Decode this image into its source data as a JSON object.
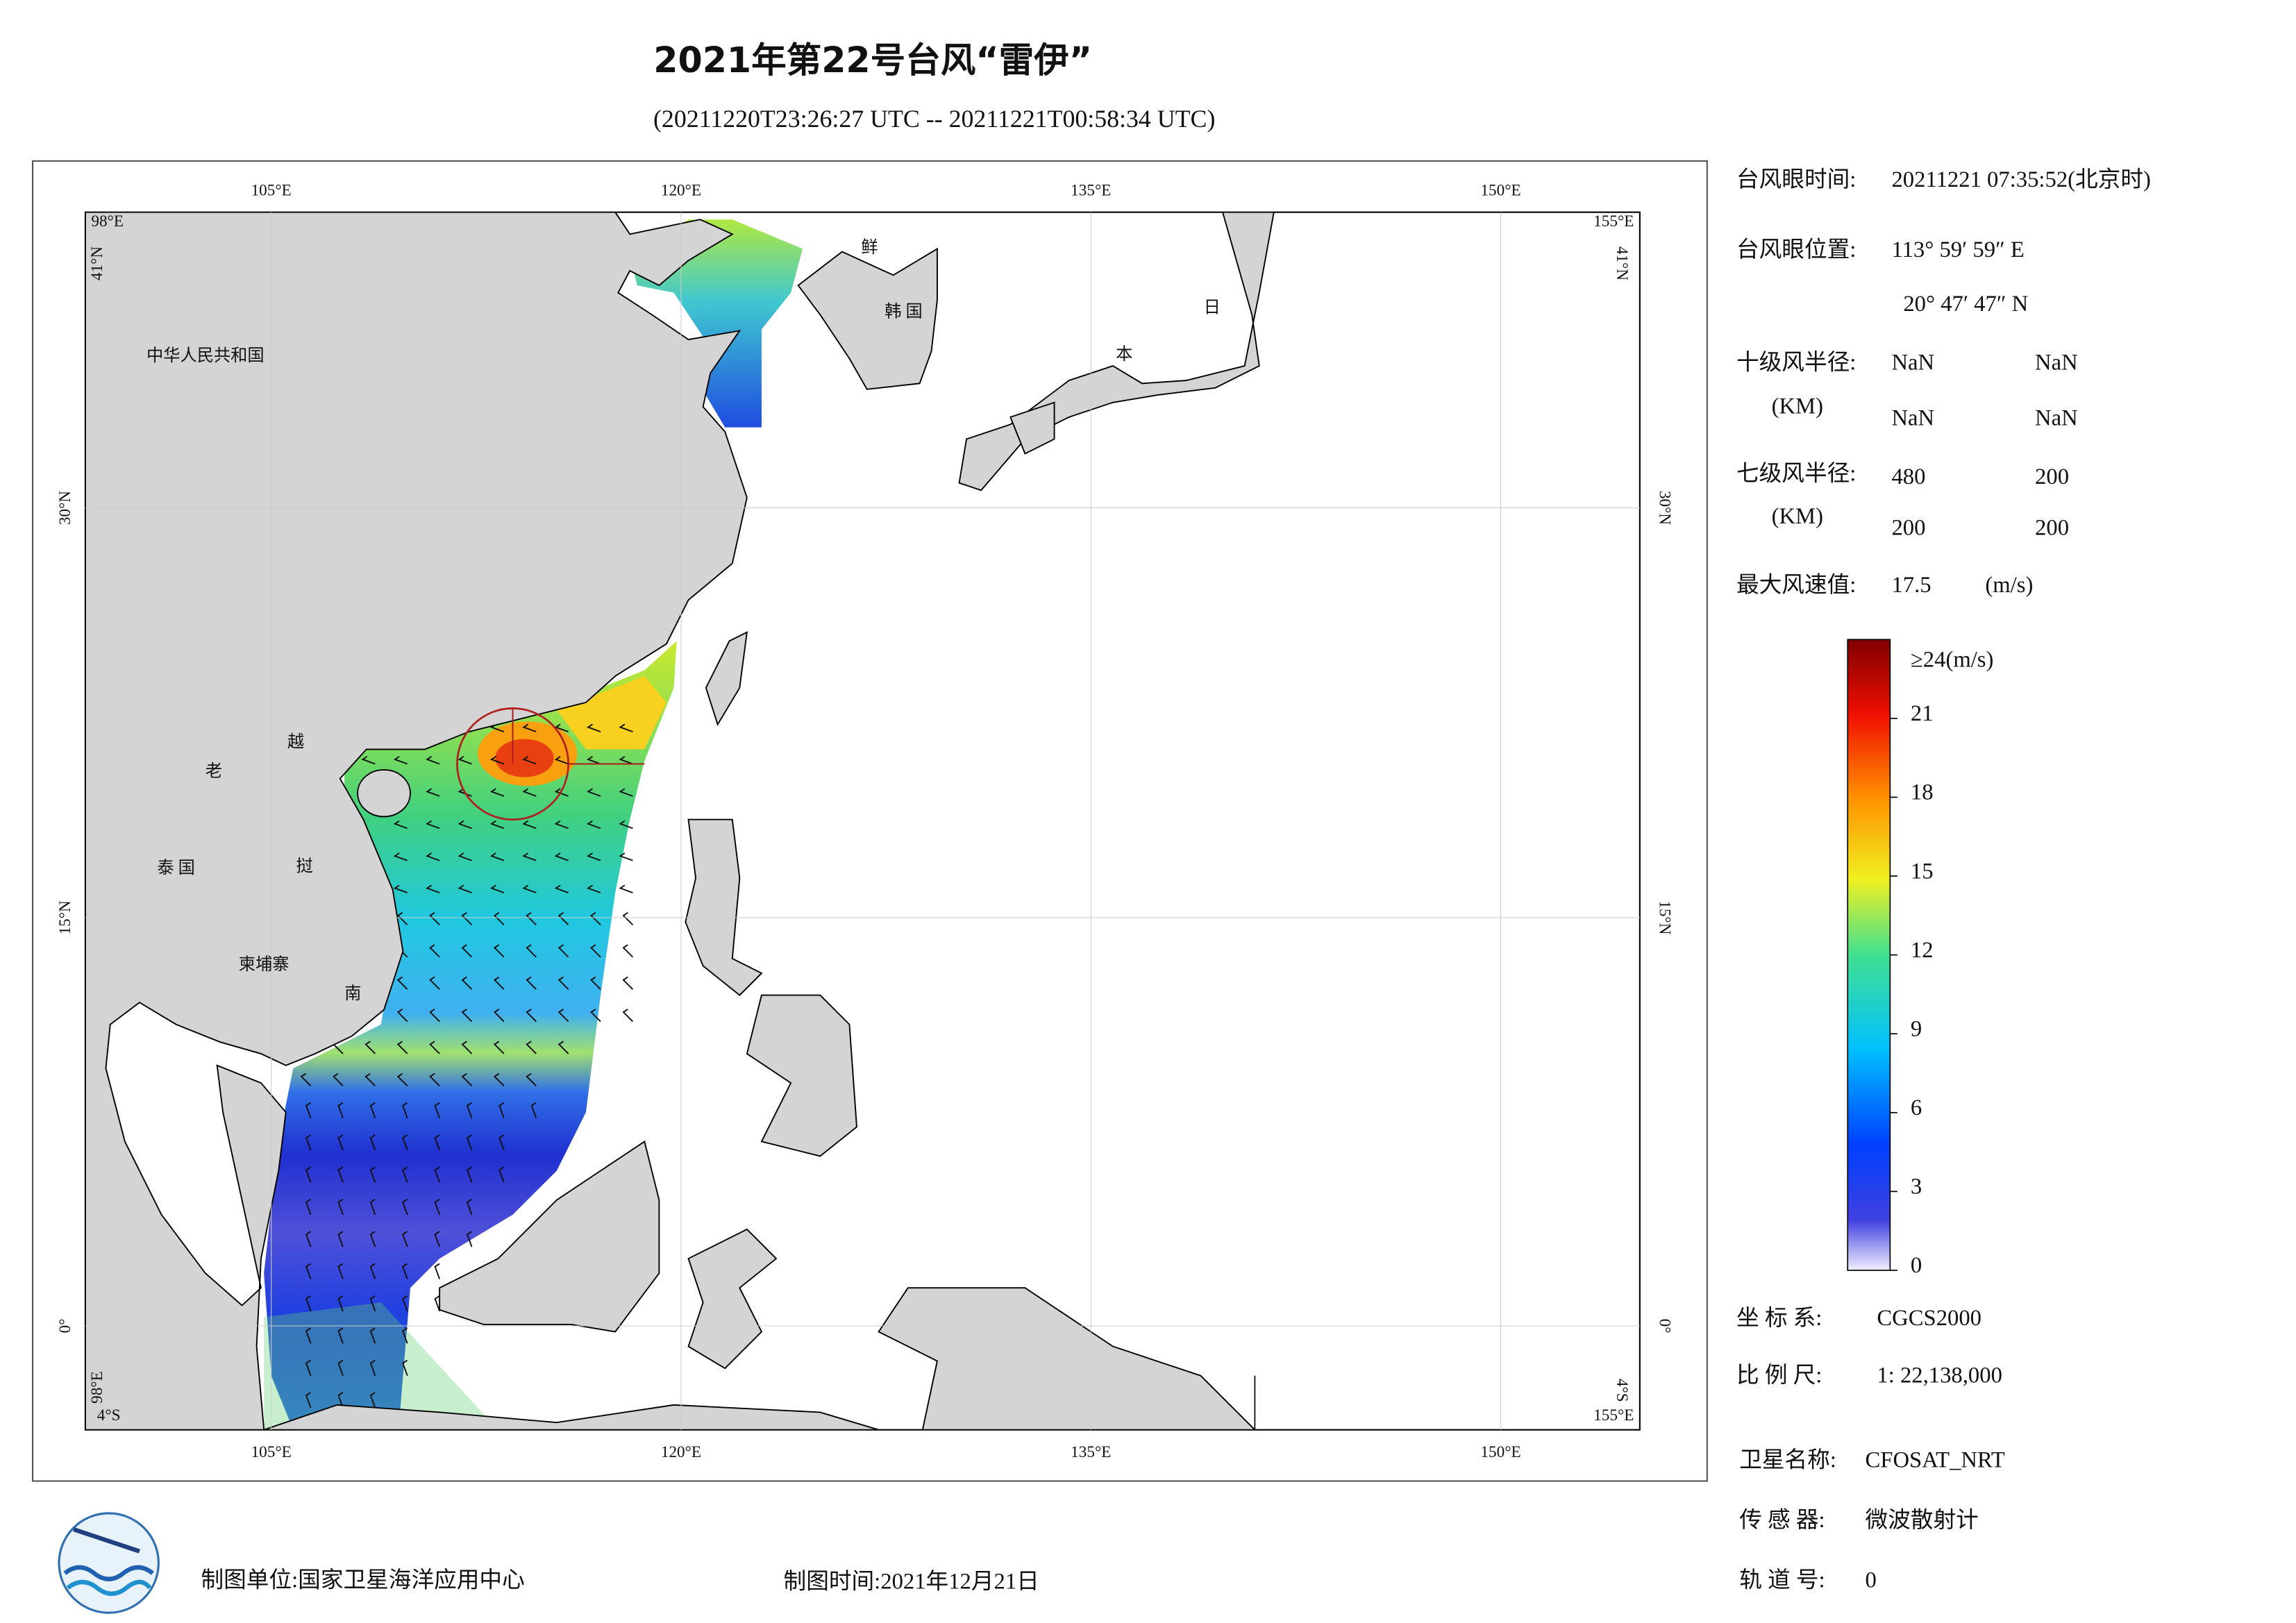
{
  "header": {
    "title": "2021年第22号台风“雷伊”",
    "subtitle": "(20211220T23:26:27 UTC -- 20211221T00:58:34 UTC)"
  },
  "map": {
    "lon_labels": [
      "105°E",
      "120°E",
      "135°E",
      "150°E"
    ],
    "lat_labels": [
      "30°N",
      "15°N",
      "0°"
    ],
    "west_edge": "98°E",
    "east_edge": "155°E",
    "north_edge": "41°N",
    "south_edge": "4°S",
    "countries": [
      "中华人民共和国",
      "老",
      "越",
      "挝",
      "泰 国",
      "柬埔寨",
      "南",
      "鲜",
      "韩 国",
      "日",
      "本"
    ]
  },
  "info": {
    "eye_time_label": "台风眼时间:",
    "eye_time": "20211221 07:35:52(北京时)",
    "eye_pos_label": "台风眼位置:",
    "eye_lon": "113° 59′ 59″ E",
    "eye_lat": "20° 47′ 47″ N",
    "r10_label": "十级风半径:",
    "r10_unit": "(KM)",
    "r10_values": [
      "NaN",
      "NaN",
      "NaN",
      "NaN"
    ],
    "r7_label": "七级风半径:",
    "r7_unit": "(KM)",
    "r7_values": [
      480,
      200,
      200,
      200
    ],
    "max_wind_label": "最大风速值:",
    "max_wind": 17.5,
    "max_wind_unit": "(m/s)"
  },
  "colorbar": {
    "ticks": [
      0,
      3,
      6,
      9,
      12,
      15,
      18,
      21
    ],
    "top_label": "≥24(m/s)",
    "range": [
      0,
      24
    ]
  },
  "meta": {
    "crs_label": "坐 标 系:",
    "crs": "CGCS2000",
    "scale_label": "比 例 尺:",
    "scale": "1: 22,138,000",
    "satellite_label": "卫星名称:",
    "satellite": "CFOSAT_NRT",
    "sensor_label": "传 感 器:",
    "sensor": "微波散射计",
    "orbit_label": "轨 道 号:",
    "orbit": 0
  },
  "footer": {
    "producer": "制图单位:国家卫星海洋应用中心",
    "date": "制图时间:2021年12月21日"
  }
}
